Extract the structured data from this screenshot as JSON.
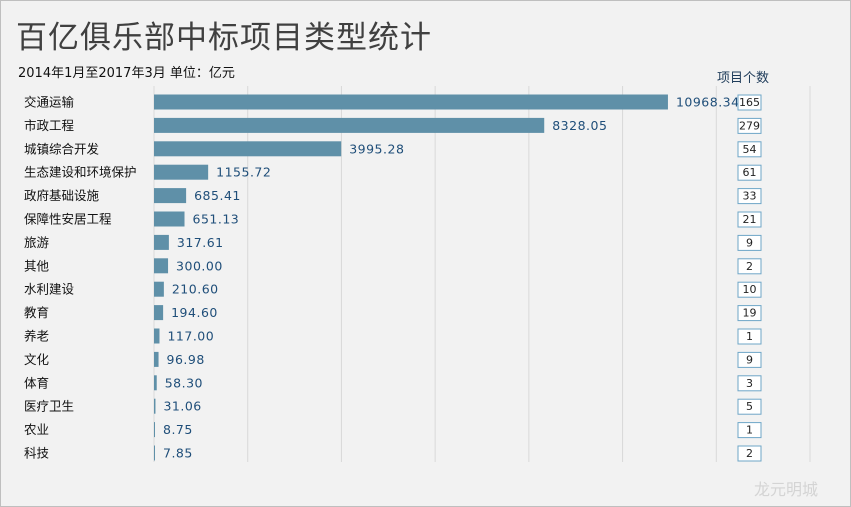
{
  "header": {
    "title": "百亿俱乐部中标项目类型统计",
    "subtitle": "2014年1月至2017年3月  单位：亿元",
    "count_column_label": "项目个数"
  },
  "watermark": "龙元明城",
  "colors": {
    "bar": "#5f90a8",
    "grid": "#d9d9d9",
    "count_box_border": "#6ea6c7",
    "value_text": "#1f4e79"
  },
  "chart_data": {
    "type": "bar",
    "orientation": "horizontal",
    "title": "百亿俱乐部中标项目类型统计",
    "subtitle": "2014年1月至2017年3月  单位：亿元",
    "categories": [
      "交通运输",
      "市政工程",
      "城镇综合开发",
      "生态建设和环境保护",
      "政府基础设施",
      "保障性安居工程",
      "旅游",
      "其他",
      "水利建设",
      "教育",
      "养老",
      "文化",
      "体育",
      "医疗卫生",
      "农业",
      "科技"
    ],
    "values": [
      10968.34,
      8328.05,
      3995.28,
      1155.72,
      685.41,
      651.13,
      317.61,
      300.0,
      210.6,
      194.6,
      117.0,
      96.98,
      58.3,
      31.06,
      8.75,
      7.85
    ],
    "value_labels": [
      "10968.34",
      "8328.05",
      "3995.28",
      "1155.72",
      "685.41",
      "651.13",
      "317.61",
      "300.00",
      "210.60",
      "194.60",
      "117.00",
      "96.98",
      "58.30",
      "31.06",
      "8.75",
      "7.85"
    ],
    "project_counts": [
      165,
      279,
      54,
      61,
      33,
      21,
      9,
      2,
      10,
      19,
      1,
      9,
      3,
      5,
      1,
      2
    ],
    "count_column_label": "项目个数",
    "xlim": [
      0,
      14000
    ],
    "grid": true,
    "legend": "none"
  }
}
